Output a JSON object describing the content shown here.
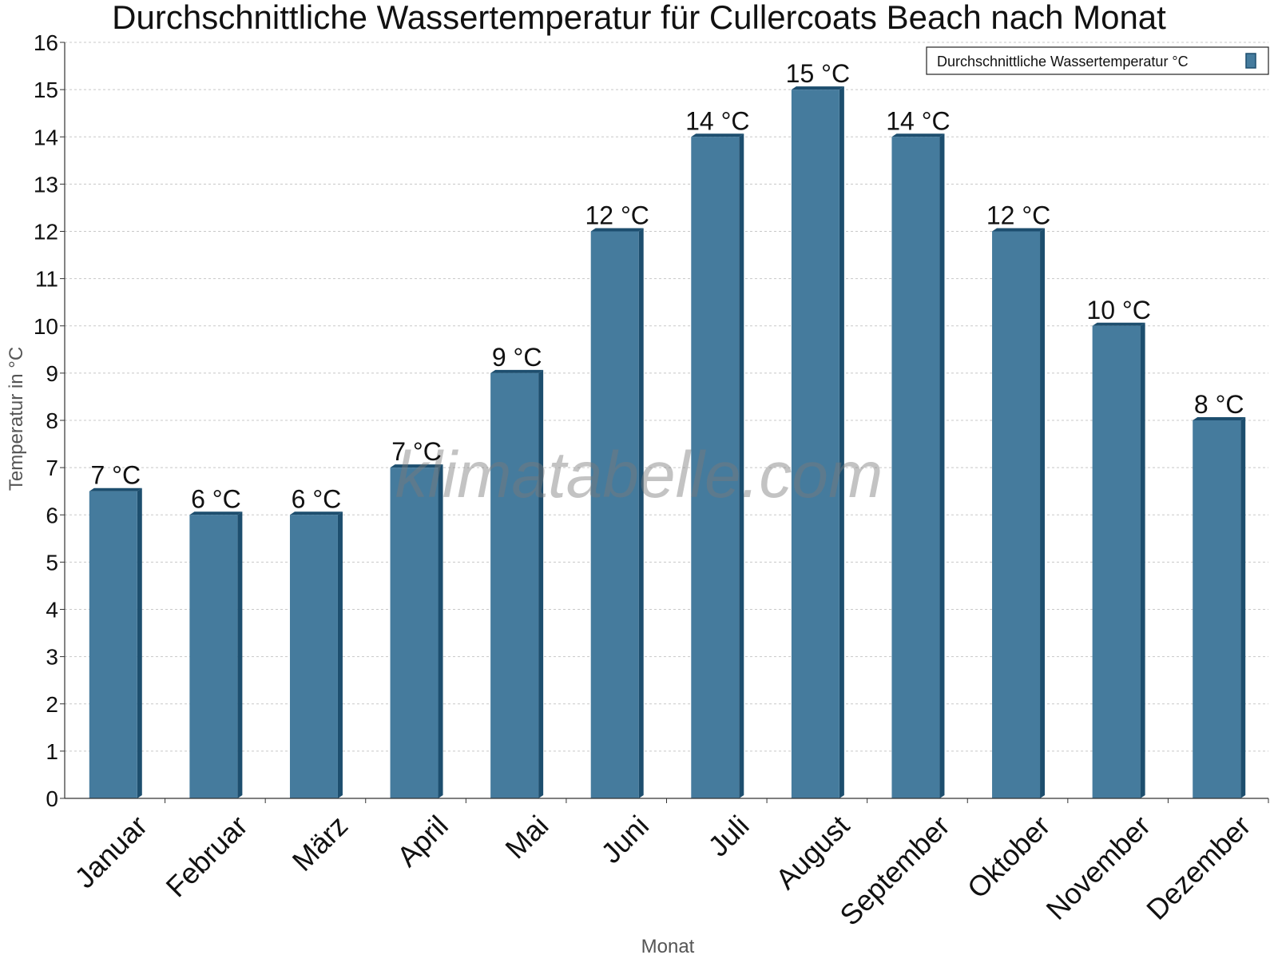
{
  "chart_data": {
    "type": "bar",
    "title": "Durchschnittliche Wassertemperatur für Cullercoats Beach nach Monat",
    "xlabel": "Monat",
    "ylabel": "Temperatur in °C",
    "categories": [
      "Januar",
      "Februar",
      "März",
      "April",
      "Mai",
      "Juni",
      "Juli",
      "August",
      "September",
      "Oktober",
      "November",
      "Dezember"
    ],
    "series": [
      {
        "name": "Durchschnittliche Wassertemperatur °C",
        "values": [
          6.5,
          6.0,
          6.0,
          7.0,
          9.0,
          12.0,
          14.0,
          15.0,
          14.0,
          12.0,
          10.0,
          8.0
        ],
        "labels": [
          "7 °C",
          "6 °C",
          "6 °C",
          "7 °C",
          "9 °C",
          "12 °C",
          "14 °C",
          "15 °C",
          "14 °C",
          "12 °C",
          "10 °C",
          "8 °C"
        ]
      }
    ],
    "ylim": [
      0,
      16
    ],
    "yticks": [
      0,
      1,
      2,
      3,
      4,
      5,
      6,
      7,
      8,
      9,
      10,
      11,
      12,
      13,
      14,
      15,
      16
    ],
    "grid": true,
    "legend_position": "top-right",
    "colors": {
      "bar": "#457b9d",
      "bar_side": "#1d4e6e",
      "grid": "#c8c8c8",
      "axis": "#333333"
    }
  },
  "watermark": "klimatabelle.com"
}
